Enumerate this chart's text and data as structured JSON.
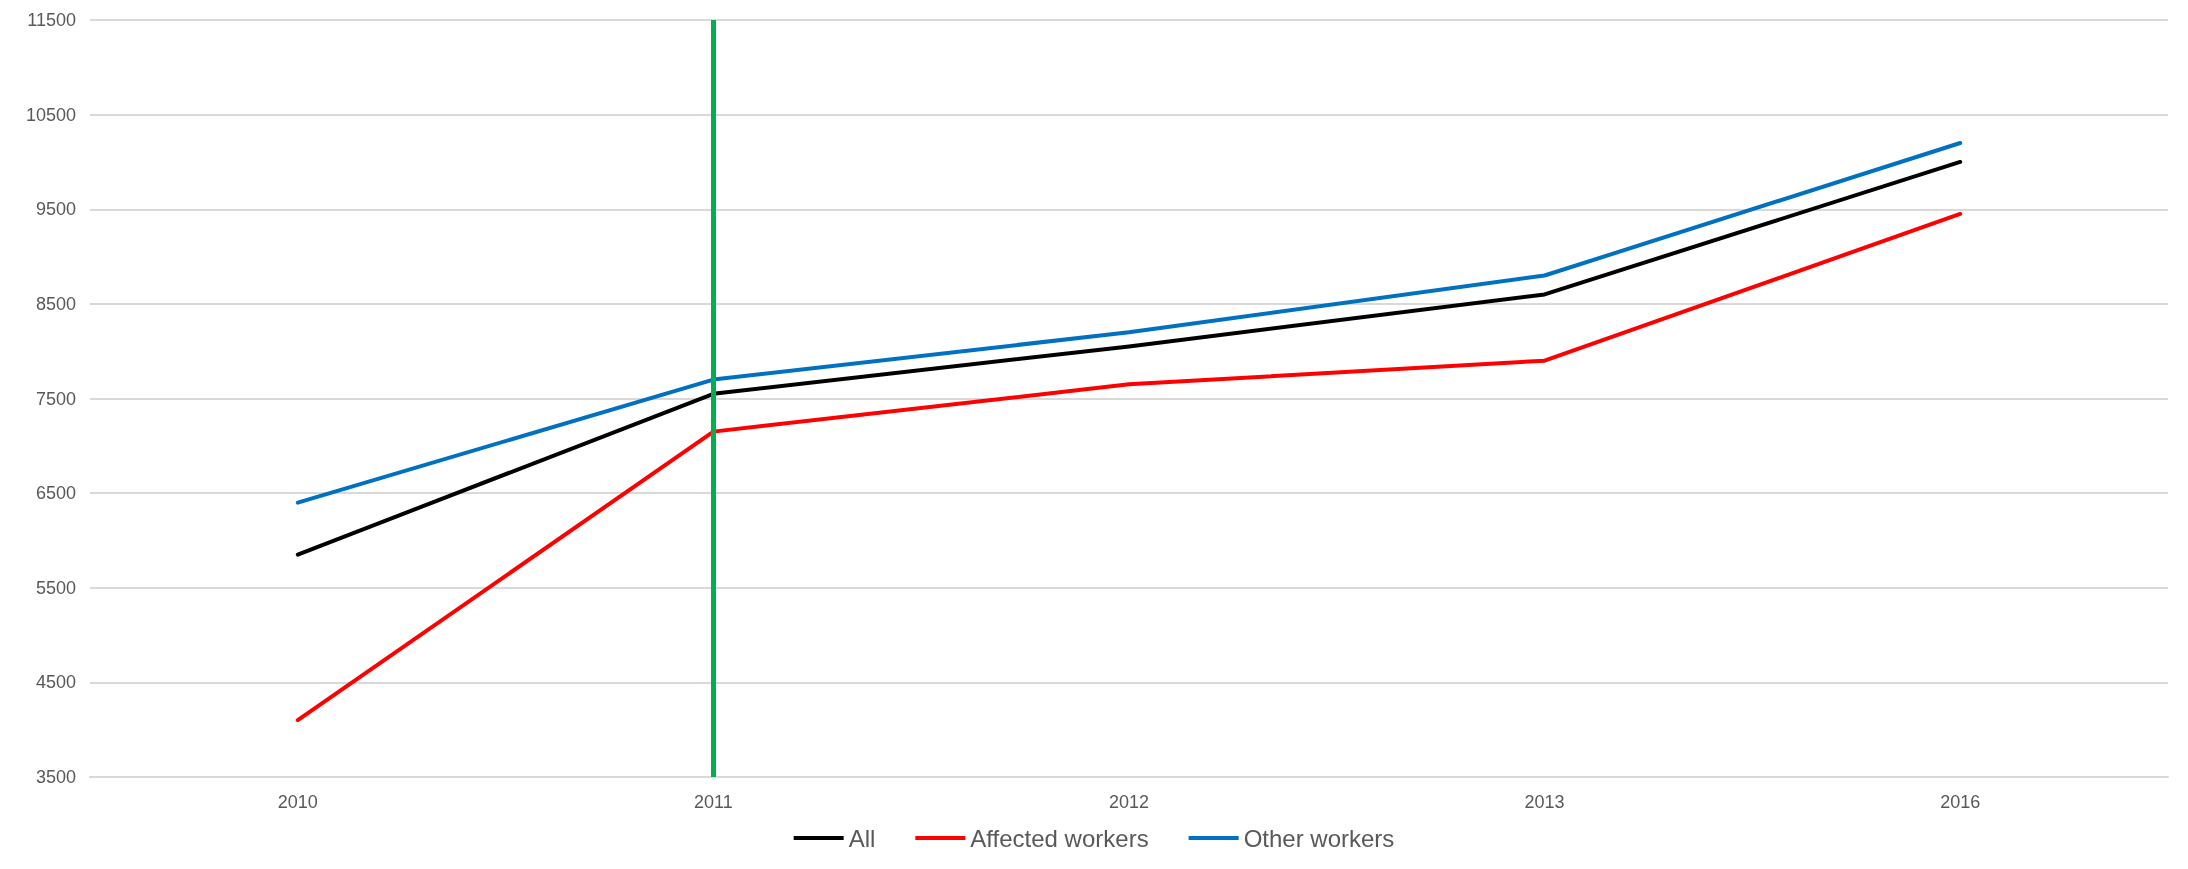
{
  "chart_data": {
    "type": "line",
    "categories": [
      "2010",
      "2011",
      "2012",
      "2013",
      "2016"
    ],
    "series": [
      {
        "name": "All",
        "color": "#000000",
        "values": [
          5850,
          7550,
          8050,
          8600,
          10000
        ]
      },
      {
        "name": "Affected workers",
        "color": "#ff0000",
        "values": [
          4100,
          7150,
          7650,
          7900,
          9450
        ]
      },
      {
        "name": "Other workers",
        "color": "#0070c0",
        "values": [
          6400,
          7700,
          8200,
          8800,
          10200
        ]
      }
    ],
    "ylim": [
      3500,
      11500
    ],
    "yticks": [
      3500,
      4500,
      5500,
      6500,
      7500,
      8500,
      9500,
      10500,
      11500
    ],
    "ref_lines": [
      {
        "axis": "x",
        "value": "2011",
        "color": "#00b050"
      }
    ],
    "grid": "y",
    "legend": "bottom",
    "marker": "none",
    "line_style": "solid"
  }
}
